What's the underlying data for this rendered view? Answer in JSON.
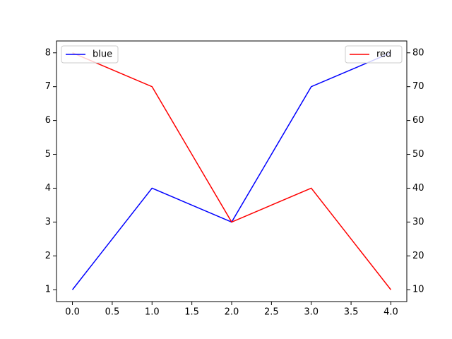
{
  "chart_data": {
    "type": "line",
    "x": [
      0,
      1,
      2,
      3,
      4
    ],
    "series": [
      {
        "name": "blue",
        "color": "#0000ff",
        "values": [
          1,
          4,
          3,
          7,
          8
        ],
        "legend": "upper left"
      },
      {
        "name": "red",
        "color": "#ff0000",
        "values": [
          80,
          70,
          30,
          40,
          10
        ],
        "axis": "y2",
        "legend": "upper right"
      }
    ],
    "xlim": [
      -0.2,
      4.2
    ],
    "xticks": [
      {
        "value": 0,
        "label": "0.0"
      },
      {
        "value": 0.5,
        "label": "0.5"
      },
      {
        "value": 1,
        "label": "1.0"
      },
      {
        "value": 1.5,
        "label": "1.5"
      },
      {
        "value": 2,
        "label": "2.0"
      },
      {
        "value": 2.5,
        "label": "2.5"
      },
      {
        "value": 3,
        "label": "3.0"
      },
      {
        "value": 3.5,
        "label": "3.5"
      },
      {
        "value": 4,
        "label": "4.0"
      }
    ],
    "ylim": [
      0.65,
      8.35
    ],
    "yticks": [
      1,
      2,
      3,
      4,
      5,
      6,
      7,
      8
    ],
    "y2lim": [
      6.5,
      83.5
    ],
    "y2ticks": [
      10,
      20,
      30,
      40,
      50,
      60,
      70,
      80
    ]
  }
}
